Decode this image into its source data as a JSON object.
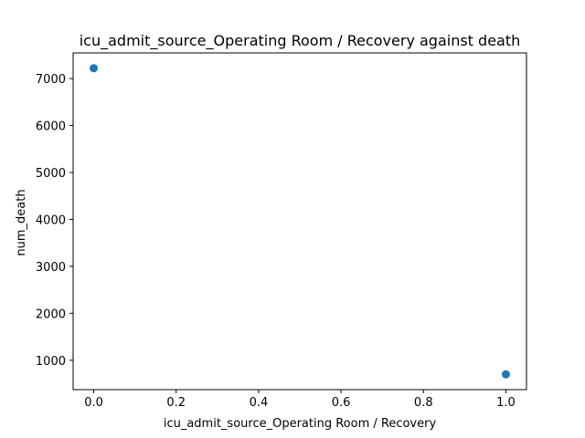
{
  "chart_data": {
    "type": "scatter",
    "title": "icu_admit_source_Operating Room / Recovery against death",
    "xlabel": "icu_admit_source_Operating Room / Recovery",
    "ylabel": "num_death",
    "x": [
      0.0,
      1.0
    ],
    "y": [
      7220,
      700
    ],
    "xlim": [
      -0.05,
      1.05
    ],
    "ylim": [
      374,
      7546
    ],
    "xticks": [
      0.0,
      0.2,
      0.4,
      0.6,
      0.8,
      1.0
    ],
    "xtick_labels": [
      "0.0",
      "0.2",
      "0.4",
      "0.6",
      "0.8",
      "1.0"
    ],
    "yticks": [
      1000,
      2000,
      3000,
      4000,
      5000,
      6000,
      7000
    ],
    "ytick_labels": [
      "1000",
      "2000",
      "3000",
      "4000",
      "5000",
      "6000",
      "7000"
    ],
    "grid": false,
    "marker_color": "#1f77b4"
  }
}
